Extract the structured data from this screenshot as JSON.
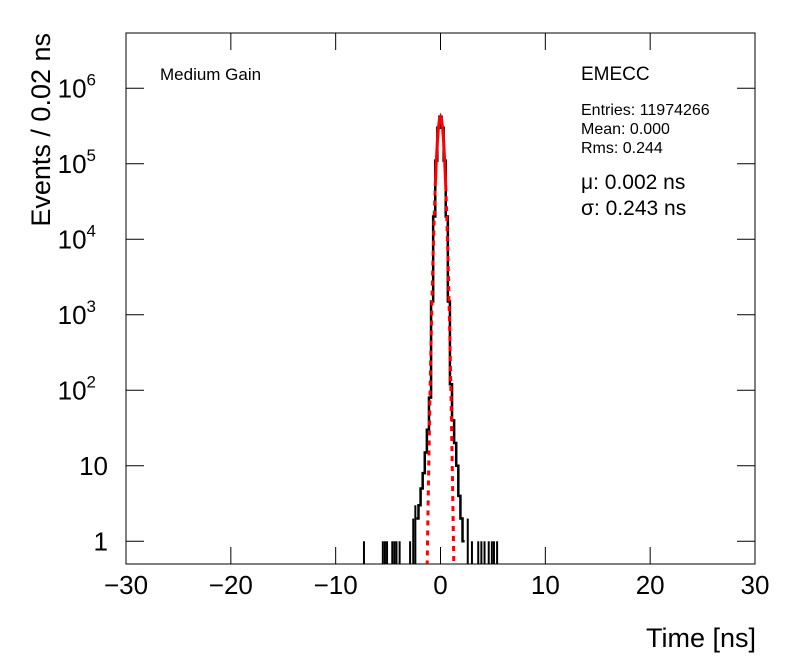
{
  "chart_data": {
    "type": "histogram",
    "y_log": true,
    "title": "Medium Gain",
    "legend_title": "EMECC",
    "stats": [
      "Entries: 11974266",
      "Mean: 0.000",
      "Rms: 0.244"
    ],
    "fit_results": [
      "μ: 0.002 ns",
      "σ: 0.243 ns"
    ],
    "xlabel": "Time [ns]",
    "ylabel": "Events / 0.02 ns",
    "xlim": [
      -30,
      30
    ],
    "ylim": [
      0.5,
      5400000
    ],
    "xticks": [
      {
        "value": -30,
        "label": "−30"
      },
      {
        "value": -20,
        "label": "−20"
      },
      {
        "value": -10,
        "label": "−10"
      },
      0,
      10,
      20,
      30
    ],
    "yticks": [
      1,
      10,
      {
        "value": 100,
        "label": "10",
        "exponent": "2"
      },
      {
        "value": 1000,
        "label": "10",
        "exponent": "3"
      },
      {
        "value": 10000,
        "label": "10",
        "exponent": "4"
      },
      {
        "value": 100000,
        "label": "10",
        "exponent": "5"
      },
      {
        "value": 1000000,
        "label": "10",
        "exponent": "6"
      }
    ],
    "histogram": {
      "color": "#000000",
      "x": [
        -2.2,
        -2.0,
        -1.8,
        -1.6,
        -1.4,
        -1.2,
        -1.0,
        -0.8,
        -0.6,
        -0.4,
        -0.2,
        0,
        0.2,
        0.4,
        0.6,
        0.8,
        1.0,
        1.2,
        1.4,
        1.6,
        1.8,
        2.0,
        2.2
      ],
      "values": [
        2,
        3,
        5,
        8,
        15,
        30,
        80,
        1500,
        20000,
        110000,
        300000,
        420000,
        300000,
        110000,
        20000,
        1500,
        120,
        40,
        20,
        10,
        4,
        2,
        1
      ]
    },
    "isolated_bins": {
      "color": "#000000",
      "x": [
        -7.3,
        -5.5,
        -5.3,
        -5.1,
        -4.6,
        -4.4,
        -4.2,
        -3.9,
        -2.9,
        -2.6,
        -2.4,
        2.6,
        3.0,
        3.6,
        3.9,
        4.2,
        4.6,
        4.9,
        5.1,
        5.4
      ],
      "values": [
        1,
        1,
        1,
        1,
        1,
        1,
        1,
        1,
        1,
        2,
        3,
        2,
        1,
        1,
        1,
        1,
        1,
        1,
        1,
        1
      ]
    },
    "fit": {
      "color": "#ff0000",
      "x": [
        -0.5,
        -0.4,
        -0.3,
        -0.2,
        -0.1,
        0,
        0.1,
        0.2,
        0.3,
        0.4,
        0.5
      ],
      "values": [
        50600,
        108000,
        196000,
        299000,
        386000,
        420000,
        386000,
        299000,
        196000,
        108000,
        50600
      ]
    },
    "fit_extension": {
      "color": "#ff0000",
      "x": [
        -1.3,
        -1.2,
        -1.1,
        -1.0,
        -0.9,
        -0.8,
        -0.7,
        -0.6,
        -0.5,
        null,
        0.5,
        0.6,
        0.7,
        0.8,
        0.9,
        1.0,
        1.1,
        1.2,
        1.3
      ],
      "values": [
        0.26,
        2.1,
        14.9,
        88.5,
        441,
        1860,
        6630,
        19900,
        50600,
        null,
        50600,
        19900,
        6630,
        1860,
        441,
        88.5,
        14.9,
        2.1,
        0.26
      ]
    }
  }
}
